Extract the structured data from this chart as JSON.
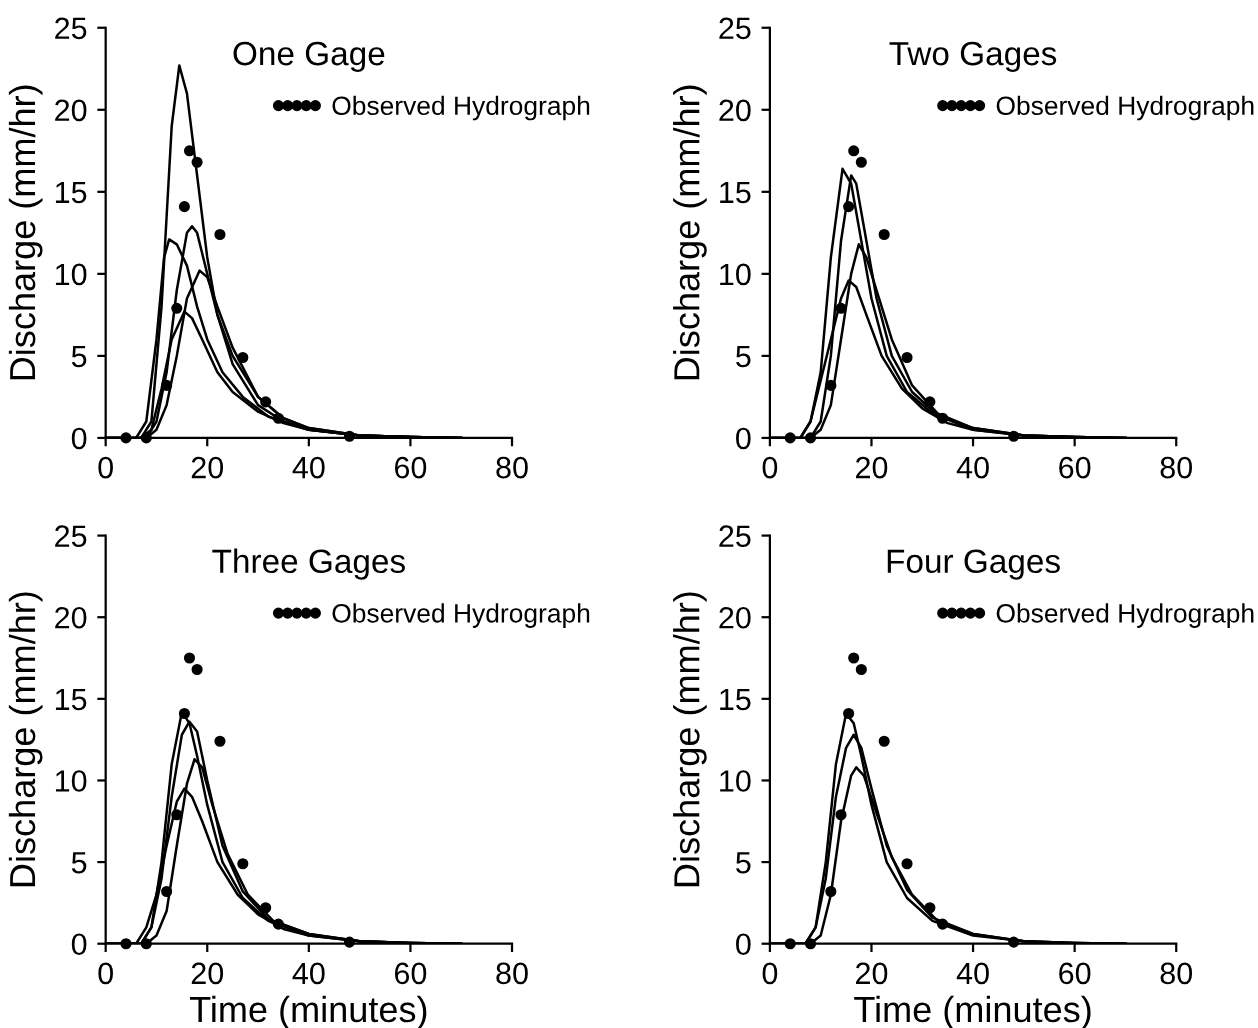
{
  "chart_data": [
    {
      "type": "line",
      "title": "One Gage",
      "ylabel": "Discharge (mm/hr)",
      "xlim": [
        0,
        80
      ],
      "ylim": [
        0,
        25
      ],
      "xticks": [
        0,
        20,
        40,
        60,
        80
      ],
      "yticks": [
        0,
        5,
        10,
        15,
        20,
        25
      ],
      "grid": false,
      "legend": "top right",
      "series": [
        {
          "color": "#000000",
          "x": [
            0,
            7,
            9,
            11,
            13,
            14.5,
            16,
            18,
            20,
            22,
            25,
            30,
            35,
            40,
            50,
            60,
            70
          ],
          "values": [
            0,
            0,
            1,
            8,
            19,
            22.7,
            21,
            16,
            11,
            7.5,
            4.5,
            2,
            1,
            0.5,
            0.15,
            0.05,
            0
          ]
        },
        {
          "type": "line",
          "color": "#000000",
          "x": [
            0,
            6,
            8,
            10,
            11.5,
            12.5,
            14,
            16,
            18,
            20,
            23,
            27,
            32,
            40,
            50,
            60,
            70
          ],
          "values": [
            0,
            0,
            1,
            6,
            11,
            12.1,
            11.8,
            10.5,
            8,
            6,
            4,
            2.5,
            1.3,
            0.5,
            0.15,
            0.05,
            0
          ]
        },
        {
          "type": "line",
          "color": "#000000",
          "x": [
            0,
            8,
            10,
            12,
            14,
            16,
            17,
            18,
            20,
            22,
            25,
            30,
            35,
            40,
            50,
            60,
            70
          ],
          "values": [
            0,
            0,
            1,
            4,
            9,
            12.5,
            12.9,
            12.5,
            10,
            7.5,
            5,
            2.5,
            1.2,
            0.6,
            0.15,
            0.05,
            0
          ]
        },
        {
          "type": "line",
          "color": "#000000",
          "x": [
            0,
            8,
            10,
            12,
            14,
            16,
            18.5,
            20,
            22,
            25,
            30,
            35,
            40,
            50,
            60,
            70
          ],
          "values": [
            0,
            0,
            0.5,
            2,
            5,
            8.5,
            10.2,
            9.8,
            8,
            5.5,
            2.5,
            1.2,
            0.6,
            0.15,
            0.05,
            0
          ]
        },
        {
          "type": "line",
          "color": "#000000",
          "x": [
            0,
            7,
            9,
            11,
            13,
            15.5,
            17,
            19,
            22,
            25,
            30,
            35,
            40,
            50,
            60,
            70
          ],
          "values": [
            0,
            0,
            0.5,
            3,
            6,
            7.7,
            7.3,
            6,
            4,
            2.8,
            1.6,
            0.9,
            0.5,
            0.15,
            0.05,
            0
          ]
        },
        {
          "type": "scatter",
          "name": "Observed Hydrograph",
          "color": "#000000",
          "marker": "circle",
          "x": [
            4,
            8,
            12,
            14,
            15.5,
            16.5,
            18,
            22.5,
            27,
            31.5,
            34,
            48
          ],
          "values": [
            0,
            0,
            3.2,
            7.9,
            14.1,
            17.5,
            16.8,
            12.4,
            4.9,
            2.2,
            1.2,
            0.1
          ]
        }
      ]
    },
    {
      "type": "line",
      "title": "Two Gages",
      "ylabel": "Discharge (mm/hr)",
      "xlim": [
        0,
        80
      ],
      "ylim": [
        0,
        25
      ],
      "xticks": [
        0,
        20,
        40,
        60,
        80
      ],
      "yticks": [
        0,
        5,
        10,
        15,
        20,
        25
      ],
      "grid": false,
      "legend": "top right",
      "series": [
        {
          "type": "line",
          "color": "#000000",
          "x": [
            0,
            6,
            8,
            10,
            12,
            14.3,
            16,
            18,
            20,
            23,
            27,
            32,
            40,
            50,
            60,
            70
          ],
          "values": [
            0,
            0,
            1,
            4,
            11,
            16.4,
            15.5,
            12,
            8.5,
            5,
            2.8,
            1.5,
            0.5,
            0.15,
            0.05,
            0
          ]
        },
        {
          "type": "line",
          "color": "#000000",
          "x": [
            0,
            8,
            10,
            12,
            14,
            16,
            17,
            19,
            21,
            24,
            28,
            33,
            40,
            50,
            60,
            70
          ],
          "values": [
            0,
            0,
            1,
            5,
            12,
            16,
            15.5,
            12,
            8.5,
            5,
            2.8,
            1.4,
            0.6,
            0.15,
            0.05,
            0
          ]
        },
        {
          "type": "line",
          "color": "#000000",
          "x": [
            0,
            8,
            10,
            12,
            14,
            16,
            17.5,
            19,
            21,
            24,
            28,
            33,
            40,
            50,
            60,
            70
          ],
          "values": [
            0,
            0,
            0.5,
            2,
            6,
            10,
            11.8,
            11,
            9,
            6,
            3.2,
            1.5,
            0.6,
            0.15,
            0.05,
            0
          ]
        },
        {
          "type": "line",
          "color": "#000000",
          "x": [
            0,
            6,
            8,
            10,
            12,
            14,
            15.5,
            17,
            19,
            22,
            26,
            30,
            35,
            40,
            50,
            60,
            70
          ],
          "values": [
            0,
            0,
            1,
            3.5,
            6,
            8.5,
            9.6,
            9.2,
            7.5,
            5,
            3,
            1.8,
            0.9,
            0.5,
            0.15,
            0.05,
            0
          ]
        },
        {
          "type": "scatter",
          "name": "Observed Hydrograph",
          "color": "#000000",
          "marker": "circle",
          "x": [
            4,
            8,
            12,
            14,
            15.5,
            16.5,
            18,
            22.5,
            27,
            31.5,
            34,
            48
          ],
          "values": [
            0,
            0,
            3.2,
            7.9,
            14.1,
            17.5,
            16.8,
            12.4,
            4.9,
            2.2,
            1.2,
            0.1
          ]
        }
      ]
    },
    {
      "type": "line",
      "title": "Three Gages",
      "xlabel": "Time (minutes)",
      "ylabel": "Discharge (mm/hr)",
      "xlim": [
        0,
        80
      ],
      "ylim": [
        0,
        25
      ],
      "xticks": [
        0,
        20,
        40,
        60,
        80
      ],
      "yticks": [
        0,
        5,
        10,
        15,
        20,
        25
      ],
      "grid": false,
      "legend": "top right",
      "series": [
        {
          "type": "line",
          "color": "#000000",
          "x": [
            0,
            7,
            9,
            11,
            13,
            15,
            16.5,
            18,
            20,
            23,
            27,
            32,
            40,
            50,
            60,
            70
          ],
          "values": [
            0,
            0,
            1,
            5,
            11,
            14.2,
            13.5,
            11.5,
            8.5,
            5,
            2.8,
            1.4,
            0.5,
            0.15,
            0.05,
            0
          ]
        },
        {
          "type": "line",
          "color": "#000000",
          "x": [
            0,
            7,
            9,
            11,
            13,
            15,
            16.5,
            18,
            20,
            23,
            27,
            32,
            40,
            50,
            60,
            70
          ],
          "values": [
            0,
            0,
            1,
            4,
            9,
            12.8,
            13.6,
            13,
            10,
            6,
            3.2,
            1.5,
            0.6,
            0.15,
            0.05,
            0
          ]
        },
        {
          "type": "line",
          "color": "#000000",
          "x": [
            0,
            8,
            10,
            12,
            14,
            16,
            17.5,
            19,
            21,
            24,
            28,
            33,
            40,
            50,
            60,
            70
          ],
          "values": [
            0,
            0,
            0.5,
            2,
            6,
            9.8,
            11.3,
            10.8,
            8.5,
            5.5,
            3,
            1.4,
            0.6,
            0.15,
            0.05,
            0
          ]
        },
        {
          "type": "line",
          "color": "#000000",
          "x": [
            0,
            6,
            8,
            10,
            12,
            14,
            15.5,
            17,
            19,
            22,
            26,
            30,
            35,
            40,
            50,
            60,
            70
          ],
          "values": [
            0,
            0,
            1,
            3,
            6,
            8.7,
            9.5,
            9,
            7.5,
            5,
            3,
            1.8,
            0.9,
            0.5,
            0.15,
            0.05,
            0
          ]
        },
        {
          "type": "scatter",
          "name": "Observed Hydrograph",
          "color": "#000000",
          "marker": "circle",
          "x": [
            4,
            8,
            12,
            14,
            15.5,
            16.5,
            18,
            22.5,
            27,
            31.5,
            34,
            48
          ],
          "values": [
            0,
            0,
            3.2,
            7.9,
            14.1,
            17.5,
            16.8,
            12.4,
            4.9,
            2.2,
            1.2,
            0.1
          ]
        }
      ]
    },
    {
      "type": "line",
      "title": "Four Gages",
      "xlabel": "Time (minutes)",
      "ylabel": "Discharge (mm/hr)",
      "xlim": [
        0,
        80
      ],
      "ylim": [
        0,
        25
      ],
      "xticks": [
        0,
        20,
        40,
        60,
        80
      ],
      "yticks": [
        0,
        5,
        10,
        15,
        20,
        25
      ],
      "grid": false,
      "legend": "top right",
      "series": [
        {
          "type": "line",
          "color": "#000000",
          "x": [
            0,
            7,
            9,
            11,
            13,
            15,
            16.5,
            18,
            20,
            23,
            27,
            32,
            40,
            50,
            60,
            70
          ],
          "values": [
            0,
            0,
            1,
            5,
            11,
            14.1,
            13.5,
            11.5,
            8.5,
            5,
            2.8,
            1.4,
            0.5,
            0.15,
            0.05,
            0
          ]
        },
        {
          "type": "line",
          "color": "#000000",
          "x": [
            0,
            7,
            9,
            11,
            13,
            15,
            16.5,
            18,
            20,
            23,
            27,
            32,
            40,
            50,
            60,
            70
          ],
          "values": [
            0,
            0,
            1,
            4,
            9,
            12,
            12.8,
            12,
            9.5,
            6,
            3.3,
            1.6,
            0.6,
            0.15,
            0.05,
            0
          ]
        },
        {
          "type": "line",
          "color": "#000000",
          "x": [
            0,
            8,
            10,
            12,
            14,
            16,
            17,
            18.5,
            21,
            24,
            28,
            33,
            40,
            50,
            60,
            70
          ],
          "values": [
            0,
            0,
            0.5,
            3,
            7.5,
            10.3,
            10.8,
            10.3,
            8,
            5.3,
            3,
            1.4,
            0.6,
            0.15,
            0.05,
            0
          ]
        },
        {
          "type": "scatter",
          "name": "Observed Hydrograph",
          "color": "#000000",
          "marker": "circle",
          "x": [
            4,
            8,
            12,
            14,
            15.5,
            16.5,
            18,
            22.5,
            27,
            31.5,
            34,
            48
          ],
          "values": [
            0,
            0,
            3.2,
            7.9,
            14.1,
            17.5,
            16.8,
            12.4,
            4.9,
            2.2,
            1.2,
            0.1
          ]
        }
      ]
    }
  ]
}
